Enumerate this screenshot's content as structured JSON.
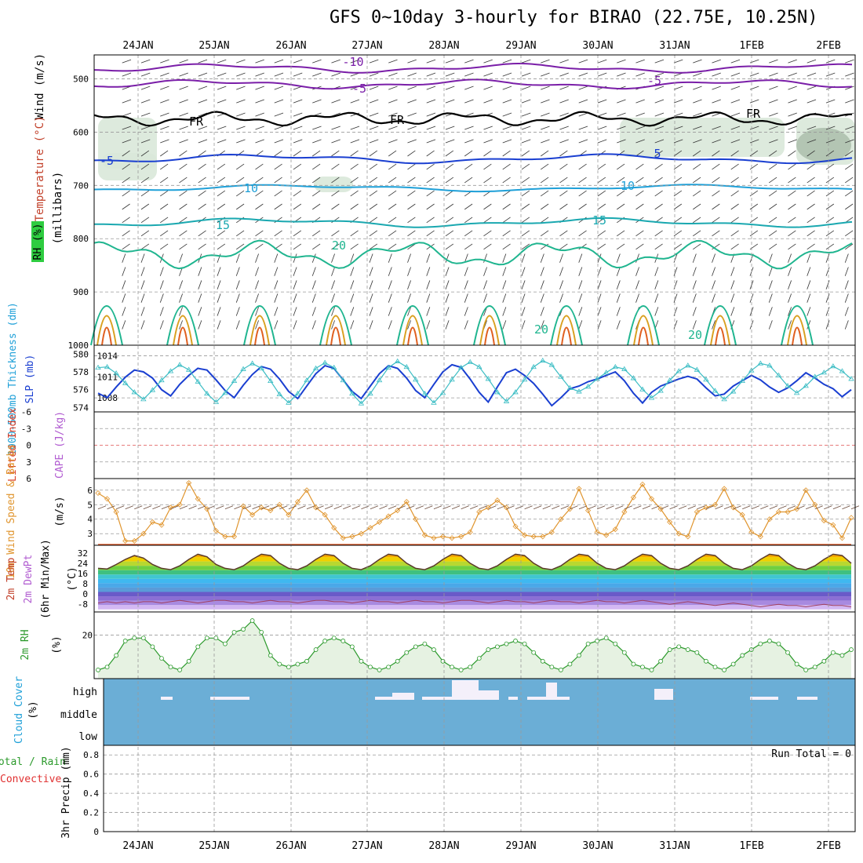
{
  "title": "GFS 0~10day 3-hourly for BIRAO (22.75E, 10.25N)",
  "days": [
    "24JAN",
    "25JAN",
    "26JAN",
    "27JAN",
    "28JAN",
    "29JAN",
    "30JAN",
    "31JAN",
    "1FEB",
    "2FEB"
  ],
  "panels": {
    "upper_air": {
      "label_wind": "Wind (m/s)",
      "label_temp": "Temperature (°C)",
      "label_rh": "RH (%)",
      "label_pressure": "(millibars)",
      "pressure_ticks": [
        "500",
        "600",
        "700",
        "800",
        "900",
        "1000"
      ],
      "contour_labels": [
        "-10",
        "-5",
        "FR",
        "FR",
        "FR",
        "-5",
        "-10",
        "5",
        "10",
        "10",
        "15",
        "15",
        "20",
        "20",
        "20",
        "-5"
      ]
    },
    "thickness_slp": {
      "label_thick": "1000-500mb Thickness (dm)",
      "label_slp": "SLP (mb)",
      "thick_ticks": [
        "580",
        "578",
        "576",
        "574"
      ],
      "slp_ticks": [
        "1014",
        "1011",
        "1008"
      ]
    },
    "lifted_cape": {
      "label_li": "Lifted Index",
      "label_cape": "CAPE (J/kg)",
      "li_ticks": [
        "-6",
        "-3",
        "0",
        "3",
        "6"
      ]
    },
    "wind10m": {
      "label": "10m Wind Speed & Barbs",
      "units": "(m/s)",
      "ticks": [
        "6",
        "5",
        "4",
        "3"
      ]
    },
    "temp2m": {
      "label": "2m Temp",
      "label2": "2m DewPt",
      "label3": "(6hr Min/Max)",
      "units": "(°C)",
      "ticks": [
        "32",
        "24",
        "16",
        "8",
        "0",
        "-8"
      ]
    },
    "rh2m": {
      "label": "2m RH",
      "units": "(%)",
      "ticks": [
        "20"
      ]
    },
    "cloud": {
      "label": "Cloud Cover",
      "units": "(%)",
      "levels": [
        "high",
        "middle",
        "low"
      ]
    },
    "precip": {
      "label_total": "Total / Rain",
      "label_conv": "Convective",
      "label_axis": "3hr Precip (mm)",
      "run_total": "Run Total = 0",
      "ticks": [
        "0.8",
        "0.6",
        "0.4",
        "0.2",
        "0"
      ]
    }
  },
  "chart_data": [
    {
      "type": "line",
      "title": "1000-500mb Thickness (dm) / SLP (mb)",
      "series": [
        {
          "name": "1000-500mb Thickness (dm)",
          "values": [
            575.6,
            575.1,
            576.3,
            577.4,
            578.2,
            578.0,
            577.3,
            576.0,
            575.3,
            576.6,
            577.6,
            578.4,
            578.2,
            577.1,
            575.9,
            575.1,
            576.5,
            577.7,
            578.6,
            578.3,
            577.2,
            575.8,
            575.0,
            576.4,
            577.8,
            578.7,
            578.4,
            577.1,
            575.8,
            575.0,
            576.4,
            577.8,
            578.7,
            578.4,
            577.3,
            575.9,
            575.1,
            576.6,
            578.0,
            578.8,
            578.5,
            577.2,
            575.7,
            574.6,
            576.3,
            577.9,
            578.3,
            577.6,
            576.7,
            575.5,
            574.2,
            575.1,
            576.1,
            576.4,
            576.9,
            577.2,
            577.6,
            578.0,
            577.0,
            575.6,
            574.5,
            575.7,
            576.4,
            576.8,
            577.2,
            577.5,
            577.2,
            576.2,
            575.3,
            575.5,
            576.4,
            577.0,
            577.6,
            577.1,
            576.3,
            575.7,
            576.2,
            577.0,
            577.9,
            577.3,
            576.6,
            576.1,
            575.2,
            576.0
          ]
        },
        {
          "name": "SLP (mb)",
          "values": [
            1012.3,
            1012.4,
            1011.5,
            1010.1,
            1008.8,
            1007.8,
            1009.1,
            1010.5,
            1011.8,
            1012.7,
            1012.0,
            1010.3,
            1008.6,
            1007.4,
            1008.7,
            1010.4,
            1012.1,
            1012.9,
            1012.2,
            1010.4,
            1008.5,
            1007.3,
            1008.6,
            1010.5,
            1012.2,
            1013.0,
            1012.3,
            1010.5,
            1008.6,
            1007.2,
            1008.6,
            1010.5,
            1012.3,
            1013.2,
            1012.4,
            1010.6,
            1008.6,
            1007.3,
            1008.7,
            1010.6,
            1012.3,
            1013.1,
            1012.4,
            1010.7,
            1008.8,
            1007.5,
            1008.8,
            1010.6,
            1012.4,
            1013.3,
            1012.7,
            1011.0,
            1009.4,
            1008.9,
            1009.6,
            1010.7,
            1011.6,
            1012.4,
            1012.1,
            1010.8,
            1009.2,
            1008.0,
            1009.0,
            1010.5,
            1011.8,
            1012.6,
            1012.0,
            1010.6,
            1009.0,
            1007.8,
            1008.9,
            1010.4,
            1011.9,
            1012.9,
            1012.6,
            1011.2,
            1009.7,
            1008.7,
            1009.7,
            1011.0,
            1011.6,
            1012.5,
            1011.8,
            1010.7
          ]
        }
      ]
    },
    {
      "type": "line",
      "title": "10m Wind Speed (m/s)",
      "series": [
        {
          "name": "10m Wind Speed (m/s)",
          "values": [
            5.8,
            5.4,
            4.5,
            2.5,
            2.5,
            3.0,
            3.8,
            3.6,
            4.8,
            5.0,
            6.5,
            5.4,
            4.7,
            3.2,
            2.8,
            2.8,
            4.9,
            4.3,
            4.8,
            4.6,
            5.0,
            4.3,
            5.2,
            6.0,
            4.8,
            4.3,
            3.4,
            2.7,
            2.8,
            3.0,
            3.4,
            3.8,
            4.2,
            4.6,
            5.2,
            4.0,
            2.9,
            2.7,
            2.8,
            2.7,
            2.8,
            3.1,
            4.5,
            4.8,
            5.3,
            4.8,
            3.5,
            2.9,
            2.8,
            2.8,
            3.1,
            4.0,
            4.7,
            6.1,
            4.6,
            3.1,
            2.9,
            3.3,
            4.5,
            5.5,
            6.4,
            5.4,
            4.7,
            3.8,
            3.0,
            2.8,
            4.5,
            4.8,
            5.0,
            6.1,
            4.8,
            4.3,
            3.1,
            2.8,
            4.0,
            4.5,
            4.5,
            4.7,
            6.0,
            5.0,
            3.9,
            3.6,
            2.7,
            4.1
          ]
        }
      ]
    },
    {
      "type": "area",
      "title": "2m Temp (°C)",
      "series": [
        {
          "name": "2m Temp (°C)",
          "values": [
            20,
            19.5,
            23,
            27,
            30,
            28,
            23,
            20,
            19,
            22,
            27,
            31,
            29,
            23,
            20,
            19,
            22,
            27,
            31,
            30,
            24,
            20,
            19,
            22,
            27,
            31,
            30,
            24,
            20,
            19,
            22,
            27,
            31,
            30,
            24,
            20,
            19,
            22,
            27,
            31,
            30,
            24,
            20,
            19,
            22,
            27,
            31,
            30,
            24,
            20,
            19,
            22,
            27,
            31,
            30,
            24,
            20,
            19,
            22,
            27,
            31,
            30,
            24,
            20,
            19,
            22,
            27,
            31,
            30,
            24,
            20,
            19,
            22,
            27,
            31,
            30,
            24,
            20,
            19,
            22,
            27,
            31,
            30,
            24
          ]
        },
        {
          "name": "2m DewPt (°C)",
          "values": [
            -7,
            -6,
            -7,
            -6,
            -7,
            -6,
            -6,
            -7,
            -6,
            -5,
            -6,
            -7,
            -6,
            -5,
            -5,
            -6,
            -6,
            -7,
            -6,
            -5,
            -6,
            -6,
            -7,
            -6,
            -5,
            -5,
            -6,
            -6,
            -7,
            -6,
            -5,
            -6,
            -6,
            -7,
            -6,
            -5,
            -6,
            -6,
            -7,
            -6,
            -5,
            -5,
            -6,
            -7,
            -6,
            -5,
            -6,
            -6,
            -7,
            -6,
            -5,
            -6,
            -6,
            -7,
            -6,
            -5,
            -6,
            -6,
            -7,
            -6,
            -5,
            -6,
            -7,
            -8,
            -7,
            -6,
            -7,
            -8,
            -9,
            -8,
            -7,
            -8,
            -9,
            -10,
            -9,
            -8,
            -9,
            -9,
            -10,
            -9,
            -8,
            -9,
            -9,
            -10
          ]
        }
      ]
    },
    {
      "type": "line",
      "title": "2m RH (%)",
      "series": [
        {
          "name": "2m RH (%)",
          "values": [
            8,
            9,
            13,
            18,
            19,
            19,
            16,
            12,
            9,
            8,
            11,
            16,
            19,
            19,
            17,
            21,
            22,
            25,
            21,
            13,
            10,
            9,
            10,
            11,
            15,
            18,
            19,
            18,
            16,
            11,
            9,
            8,
            9,
            11,
            14,
            16,
            17,
            15,
            11,
            9,
            8,
            9,
            12,
            15,
            16,
            17,
            18,
            17,
            14,
            11,
            9,
            8,
            10,
            13,
            17,
            18,
            19,
            17,
            14,
            10,
            9,
            8,
            11,
            15,
            16,
            15,
            14,
            11,
            9,
            8,
            10,
            13,
            15,
            17,
            18,
            17,
            14,
            10,
            8,
            9,
            11,
            14,
            13,
            15
          ]
        }
      ]
    },
    {
      "type": "bar",
      "title": "3hr Precip (mm)",
      "series": [
        {
          "name": "3hr Precip (mm)",
          "values": [
            0
          ]
        }
      ],
      "ylim": [
        0,
        0.9
      ]
    }
  ],
  "colors": {
    "thickness": "#1a3fd1",
    "slp": "#3bbdc4",
    "wind": "#e0952e",
    "rh": "#2c9a2c",
    "cloud": "#6baed6",
    "temp_line": "#5a3a2a"
  }
}
